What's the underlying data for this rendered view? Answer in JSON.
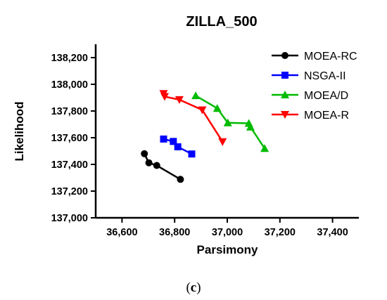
{
  "chart_data": {
    "type": "line",
    "title": "ZILLA_500",
    "xlabel": "Parsimony",
    "ylabel": "Likelihood",
    "xlim": [
      36500,
      37500
    ],
    "ylim": [
      137000,
      138300
    ],
    "x_ticks": [
      36600,
      36800,
      37000,
      37200,
      37400
    ],
    "y_ticks": [
      137000,
      137200,
      137400,
      137600,
      137800,
      138000,
      138200
    ],
    "x_tick_labels": [
      "36,600",
      "36,800",
      "37,000",
      "37,200",
      "37,400"
    ],
    "y_tick_labels": [
      "137,000",
      "137,200",
      "137,400",
      "137,600",
      "137,800",
      "138,000",
      "138,200"
    ],
    "grid": false,
    "legend_position": "top-right",
    "series": [
      {
        "name": "MOEA-RC",
        "color": "#000000",
        "marker": "circle",
        "points": [
          [
            36685,
            137480
          ],
          [
            36702,
            137412
          ],
          [
            36732,
            137392
          ],
          [
            36822,
            137288
          ]
        ]
      },
      {
        "name": "NSGA-II",
        "color": "#0000ff",
        "marker": "square",
        "points": [
          [
            36758,
            137590
          ],
          [
            36795,
            137572
          ],
          [
            36812,
            137532
          ],
          [
            36865,
            137478
          ]
        ]
      },
      {
        "name": "MOEA/D",
        "color": "#00bb00",
        "marker": "triangle-up",
        "points": [
          [
            36880,
            137915
          ],
          [
            36962,
            137820
          ],
          [
            37002,
            137712
          ],
          [
            37082,
            137708
          ],
          [
            37088,
            137680
          ],
          [
            37142,
            137520
          ]
        ]
      },
      {
        "name": "MOEA-R",
        "color": "#ff0000",
        "marker": "triangle-down",
        "points": [
          [
            36758,
            137930
          ],
          [
            36762,
            137908
          ],
          [
            36818,
            137885
          ],
          [
            36905,
            137808
          ],
          [
            36982,
            137570
          ]
        ]
      }
    ]
  },
  "caption": {
    "open": "(",
    "letter": "c",
    "close": ")"
  }
}
